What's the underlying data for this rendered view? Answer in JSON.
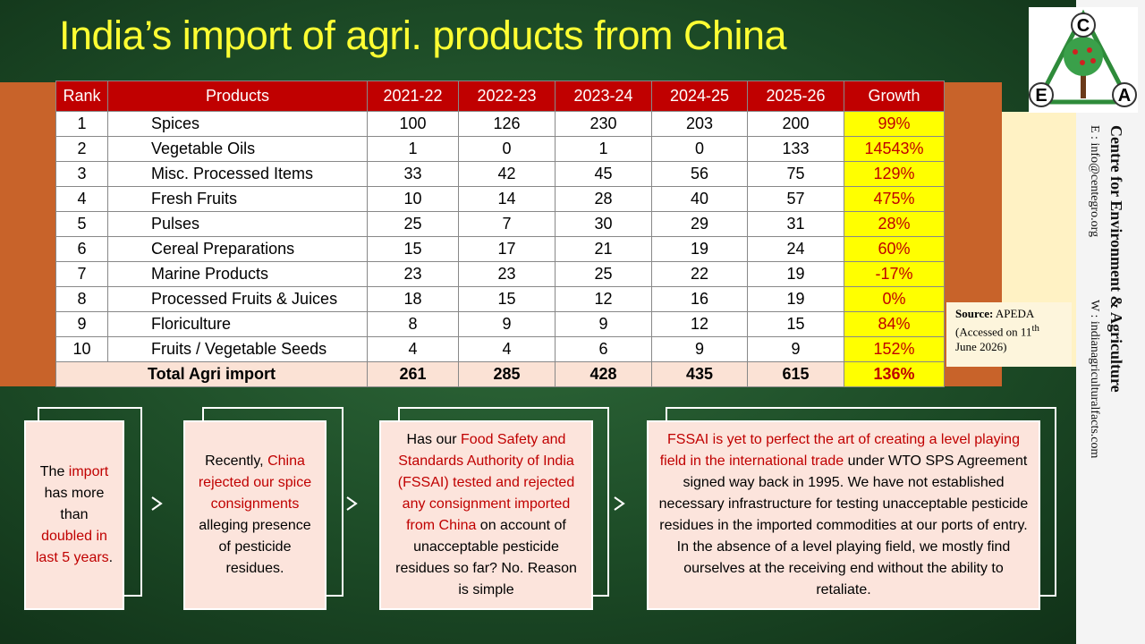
{
  "title": "India’s import of agri. products from China",
  "table": {
    "header": [
      "Rank",
      "Products",
      "2021-22",
      "2022-23",
      "2023-24",
      "2024-25",
      "2025-26",
      "Growth"
    ],
    "rows": [
      [
        1,
        "Spices",
        100,
        126,
        230,
        203,
        200,
        "99%"
      ],
      [
        2,
        "Vegetable Oils",
        1,
        0,
        1,
        0,
        133,
        "14543%"
      ],
      [
        3,
        "Misc. Processed Items",
        33,
        42,
        45,
        56,
        75,
        "129%"
      ],
      [
        4,
        "Fresh Fruits",
        10,
        14,
        28,
        40,
        57,
        "475%"
      ],
      [
        5,
        "Pulses",
        25,
        7,
        30,
        29,
        31,
        "28%"
      ],
      [
        6,
        "Cereal Preparations",
        15,
        17,
        21,
        19,
        24,
        "60%"
      ],
      [
        7,
        "Marine Products",
        23,
        23,
        25,
        22,
        19,
        "-17%"
      ],
      [
        8,
        "Processed Fruits & Juices",
        18,
        15,
        12,
        16,
        19,
        "0%"
      ],
      [
        9,
        "Floriculture",
        8,
        9,
        9,
        12,
        15,
        "84%"
      ],
      [
        10,
        "Fruits / Vegetable Seeds",
        4,
        4,
        6,
        9,
        9,
        "152%"
      ]
    ],
    "total": [
      "Total Agri import",
      261,
      285,
      428,
      435,
      615,
      "136%"
    ]
  },
  "source": {
    "label": "Source:",
    "name": "APEDA",
    "accessed": "(Accessed on 11",
    "sup": "th",
    "date": " June 2026)"
  },
  "logo": {
    "letters": [
      "C",
      "E",
      "A"
    ]
  },
  "organization": {
    "name": "Centre for Environment & Agriculture",
    "email": "E : info@centegro.org",
    "web": "W : indianagriculturalfacts.com"
  },
  "boxes": [
    [
      "The ",
      {
        "text": "import",
        "color": "#c00000"
      },
      " has more than ",
      {
        "text": "doubled in last 5 years",
        "color": "#c00000"
      },
      "."
    ],
    [
      "Recently, ",
      {
        "text": "China rejected our spice consignments",
        "color": "#c00000"
      },
      " alleging presence of pesticide residues."
    ],
    [
      "Has our ",
      {
        "text": "Food Safety and Standards Authority of India (FSSAI) tested and rejected any consignment imported from China",
        "color": "#c00000"
      },
      " on account of unacceptable pesticide residues so far? No. Reason is simple"
    ],
    [
      {
        "text": "FSSAI is yet to perfect the art of creating a level playing field in  the international trade",
        "color": "#c00000"
      },
      " under WTO SPS Agreement signed way back in 1995. We have not established necessary infrastructure for testing unacceptable pesticide residues in the imported commodities at our ports of entry. In the absence of a level playing field, we mostly find ourselves at the receiving end without the ability to retaliate."
    ]
  ]
}
